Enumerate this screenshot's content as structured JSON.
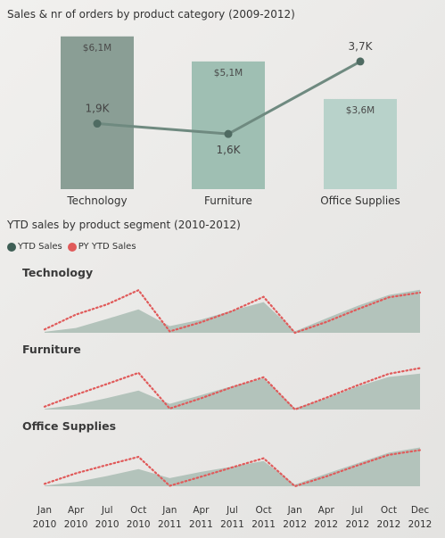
{
  "chart_data": [
    {
      "type": "bar",
      "title": "Sales & nr of orders by product category (2009-2012)",
      "categories": [
        "Technology",
        "Furniture",
        "Office Supplies"
      ],
      "series": [
        {
          "type": "bar",
          "values": [
            6.1,
            5.1,
            3.6
          ],
          "labels": [
            "$6,1M",
            "$5,1M",
            "$3,6M"
          ],
          "colors": [
            "#8a9e95",
            "#9fbfb3",
            "#b8d2ca"
          ]
        },
        {
          "type": "line",
          "values": [
            1.9,
            1.6,
            3.7
          ],
          "labels": [
            "1,9K",
            "1,6K",
            "3,7K"
          ],
          "color": "#6f8a80"
        }
      ],
      "ylim": [
        0,
        6.2
      ],
      "ylim_line": [
        0,
        4.5
      ]
    },
    {
      "type": "area",
      "title": "YTD sales by product segment (2010-2012)",
      "legend": [
        {
          "name": "YTD Sales",
          "color": "#3e5e55"
        },
        {
          "name": "PY YTD Sales",
          "color": "#e05a5a"
        }
      ],
      "x": [
        "Jan 2010",
        "Apr 2010",
        "Jul 2010",
        "Oct 2010",
        "Jan 2011",
        "Apr 2011",
        "Jul 2011",
        "Oct 2011",
        "Jan 2012",
        "Apr 2012",
        "Jul 2012",
        "Oct 2012",
        "Dec 2012"
      ],
      "x_ticks": [
        {
          "month": "Jan",
          "year": "2010"
        },
        {
          "month": "Apr",
          "year": "2010"
        },
        {
          "month": "Jul",
          "year": "2010"
        },
        {
          "month": "Oct",
          "year": "2010"
        },
        {
          "month": "Jan",
          "year": "2011"
        },
        {
          "month": "Apr",
          "year": "2011"
        },
        {
          "month": "Jul",
          "year": "2011"
        },
        {
          "month": "Oct",
          "year": "2011"
        },
        {
          "month": "Jan",
          "year": "2012"
        },
        {
          "month": "Apr",
          "year": "2012"
        },
        {
          "month": "Jul",
          "year": "2012"
        },
        {
          "month": "Oct",
          "year": "2012"
        },
        {
          "month": "Dec",
          "year": "2012"
        }
      ],
      "panels": [
        {
          "name": "Technology",
          "ytd": [
            4,
            20,
            58,
            98,
            28,
            55,
            93,
            128,
            6,
            60,
            112,
            158,
            180
          ],
          "py_ytd": [
            14,
            76,
            119,
            178,
            6,
            44,
            91,
            150,
            0,
            45,
            98,
            148,
            168
          ]
        },
        {
          "name": "Furniture",
          "ytd": [
            3,
            20,
            48,
            79,
            24,
            60,
            98,
            130,
            6,
            46,
            96,
            136,
            150
          ],
          "py_ytd": [
            12,
            62,
            107,
            153,
            4,
            47,
            94,
            135,
            0,
            49,
            101,
            149,
            173
          ]
        },
        {
          "name": "Office Supplies",
          "ytd": [
            3,
            18,
            43,
            72,
            34,
            60,
            82,
            105,
            7,
            52,
            96,
            140,
            162
          ],
          "py_ytd": [
            10,
            54,
            89,
            123,
            2,
            40,
            79,
            117,
            0,
            41,
            87,
            131,
            151
          ]
        }
      ],
      "ylim": [
        0,
        190
      ],
      "area_color": "#b3c3bb"
    }
  ]
}
